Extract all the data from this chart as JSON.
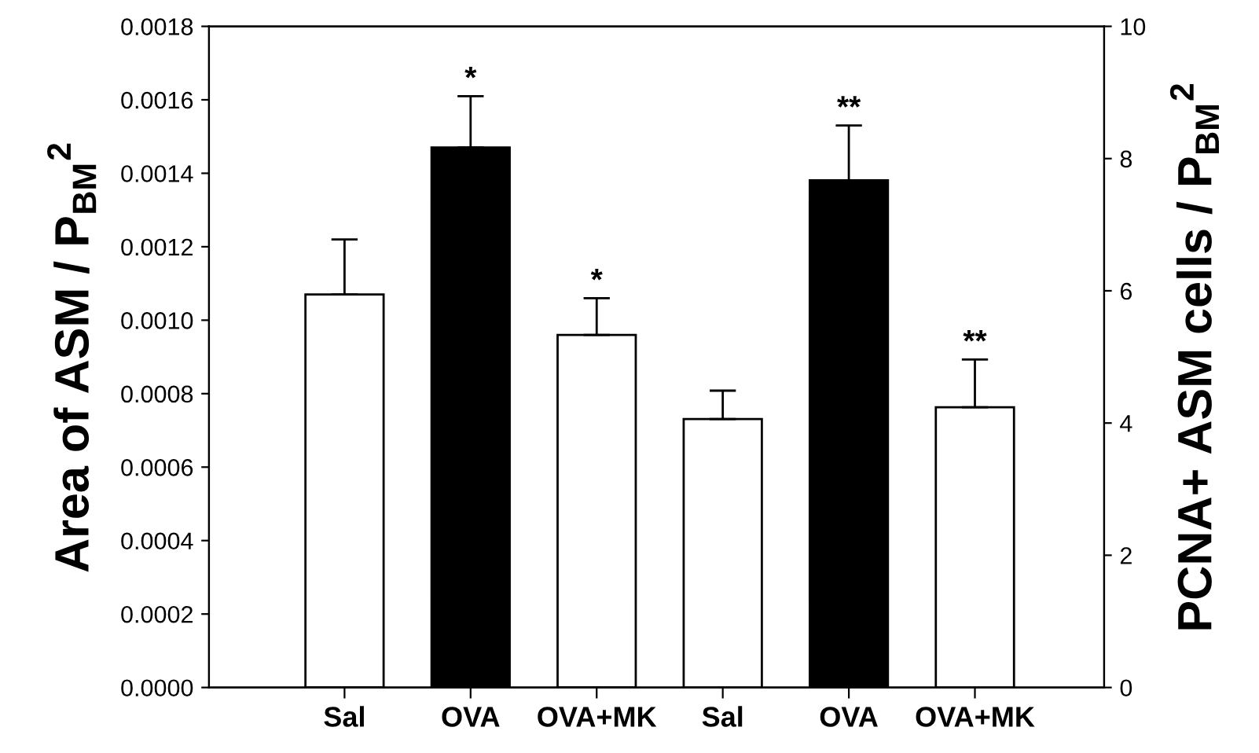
{
  "chart_data": {
    "type": "bar",
    "categories": [
      "Sal",
      "OVA",
      "OVA+MK",
      "Sal",
      "OVA",
      "OVA+MK"
    ],
    "ylabel": "Area of ASM / P$_{BM}$$^{2}$",
    "y2label": "PCNA+ ASM cells / P$_{BM}$$^{2}$",
    "series": [
      {
        "colors": [
          "#ffffff",
          "#000000",
          "#ffffff",
          null,
          null,
          null
        ],
        "values": [
          0.00107,
          0.00147,
          0.00096,
          null,
          null,
          null
        ],
        "errors": [
          0.00015,
          0.00014,
          0.0001,
          null,
          null,
          null
        ],
        "value_labels": [
          null,
          "*",
          "*",
          null,
          null,
          null
        ]
      },
      {
        "axis": "y2",
        "colors": [
          null,
          null,
          null,
          "#ffffff",
          "#000000",
          "#ffffff"
        ],
        "values": [
          null,
          null,
          null,
          4.06,
          7.67,
          4.24
        ],
        "errors": [
          null,
          null,
          null,
          0.43,
          0.83,
          0.72
        ],
        "value_labels": [
          null,
          null,
          null,
          null,
          "**",
          "**"
        ]
      }
    ],
    "ylim": [
      0,
      0.0018
    ],
    "yticks": [
      {
        "value": 0,
        "label": "0.0000"
      },
      {
        "value": 0.0002,
        "label": "0.0002"
      },
      {
        "value": 0.0004,
        "label": "0.0004"
      },
      {
        "value": 0.0006,
        "label": "0.0006"
      },
      {
        "value": 0.0008,
        "label": "0.0008"
      },
      {
        "value": 0.001,
        "label": "0.0010"
      },
      {
        "value": 0.0012,
        "label": "0.0012"
      },
      {
        "value": 0.0014,
        "label": "0.0014"
      },
      {
        "value": 0.0016,
        "label": "0.0016"
      },
      {
        "value": 0.0018,
        "label": "0.0018"
      }
    ],
    "y2lim": [
      0,
      10
    ],
    "y2ticks": [
      0,
      2,
      4,
      6,
      8,
      10
    ],
    "grid": false,
    "legend": false
  }
}
